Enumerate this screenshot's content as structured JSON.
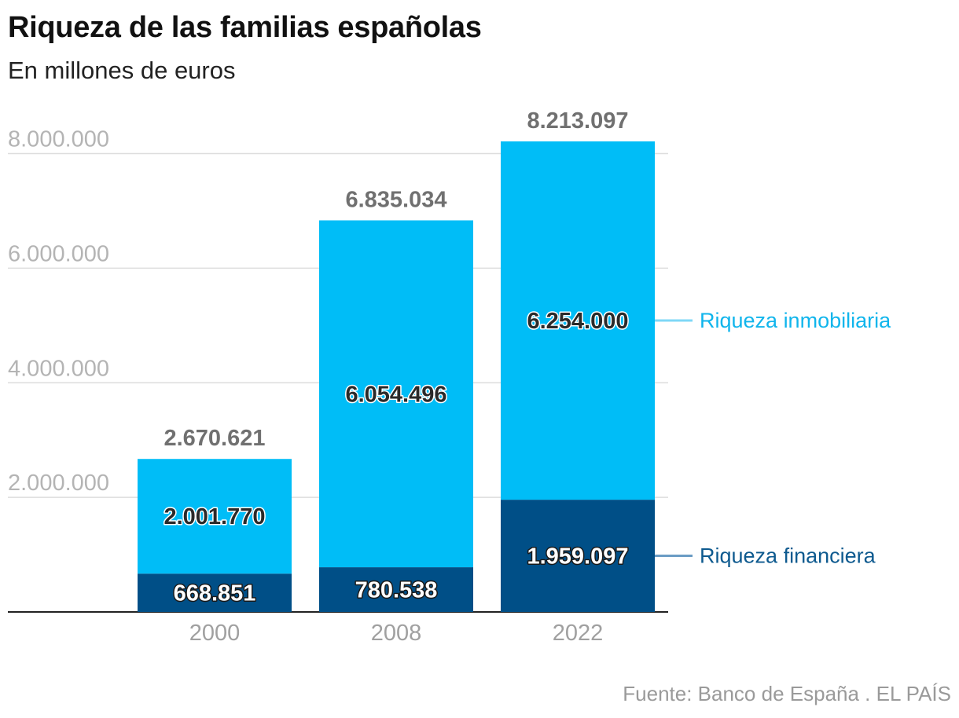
{
  "header": {
    "title": "Riqueza de las familias españolas",
    "subtitle": "En millones de euros"
  },
  "footer": {
    "source": "Fuente: Banco de España . EL PAÍS"
  },
  "colors": {
    "financiera": "#004f87",
    "inmobiliaria": "#00bdf7",
    "financiera_legend": "#0e5a8f",
    "inmobiliaria_legend": "#10b5ec",
    "total_label": "#707070",
    "grid": "#dddddd",
    "axis": "#222222"
  },
  "chart_data": {
    "type": "bar",
    "stacked": true,
    "categories": [
      "2000",
      "2008",
      "2022"
    ],
    "series": [
      {
        "name": "Riqueza financiera",
        "values": [
          668851,
          780538,
          1959097
        ],
        "labels": [
          "668.851",
          "780.538",
          "1.959.097"
        ]
      },
      {
        "name": "Riqueza inmobiliaria",
        "values": [
          2001770,
          6054496,
          6254000
        ],
        "labels": [
          "2.001.770",
          "6.054.496",
          "6.254.000"
        ]
      }
    ],
    "totals": [
      2670621,
      6835034,
      8213097
    ],
    "total_labels": [
      "2.670.621",
      "6.835.034",
      "8.213.097"
    ],
    "yticks": [
      2000000,
      4000000,
      6000000,
      8000000
    ],
    "ytick_labels": [
      "2.000.000",
      "4.000.000",
      "6.000.000",
      "8.000.000"
    ],
    "ylim": [
      0,
      8213097
    ],
    "grid": true,
    "legend_position": "right (direct labels)"
  }
}
